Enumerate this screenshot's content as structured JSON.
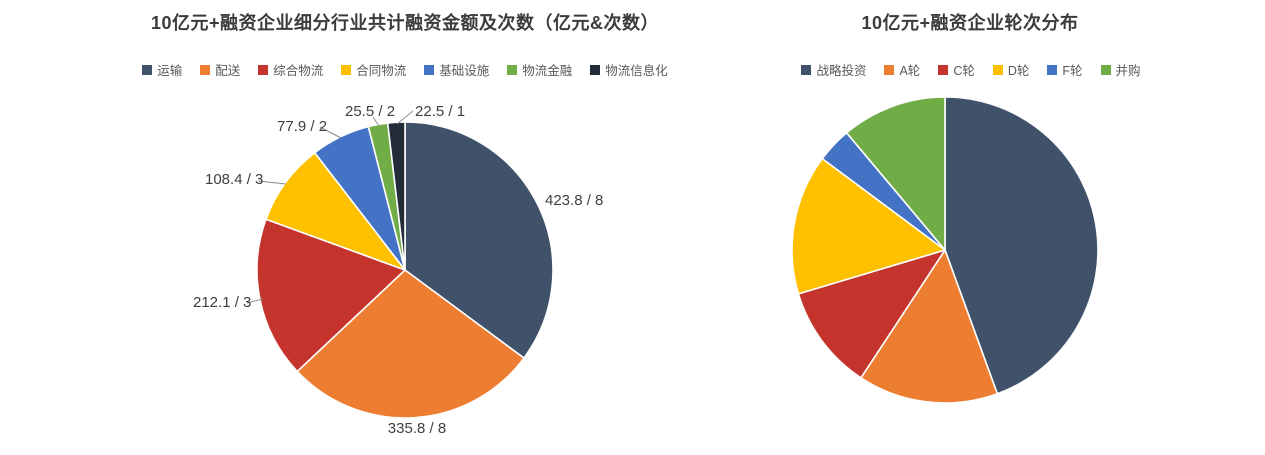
{
  "chart_data": [
    {
      "type": "pie",
      "title": "10亿元+融资企业细分行业共计融资金额及次数（亿元&次数）",
      "legend_position": "top",
      "data_label_format": "amount / count",
      "slices": [
        {
          "label": "运输",
          "color": "#3F5269",
          "amount": 423.8,
          "count": 8,
          "data_label": "423.8 / 8"
        },
        {
          "label": "配送",
          "color": "#ED7D31",
          "amount": 335.8,
          "count": 8,
          "data_label": "335.8 / 8"
        },
        {
          "label": "综合物流",
          "color": "#C5332D",
          "amount": 212.1,
          "count": 3,
          "data_label": "212.1 / 3"
        },
        {
          "label": "合同物流",
          "color": "#FFC000",
          "amount": 108.4,
          "count": 3,
          "data_label": "108.4 / 3"
        },
        {
          "label": "基础设施",
          "color": "#4472C4",
          "amount": 77.9,
          "count": 2,
          "data_label": "77.9 / 2"
        },
        {
          "label": "物流金融",
          "color": "#70AD47",
          "amount": 25.5,
          "count": 2,
          "data_label": "25.5 / 2"
        },
        {
          "label": "物流信息化",
          "color": "#232D3A",
          "amount": 22.5,
          "count": 1,
          "data_label": "22.5 / 1"
        }
      ]
    },
    {
      "type": "pie",
      "title": "10亿元+融资企业轮次分布",
      "legend_position": "top",
      "slices": [
        {
          "label": "战略投资",
          "color": "#3F5269",
          "value": 12
        },
        {
          "label": "A轮",
          "color": "#ED7D31",
          "value": 4
        },
        {
          "label": "C轮",
          "color": "#C5332D",
          "value": 3
        },
        {
          "label": "D轮",
          "color": "#FFC000",
          "value": 4
        },
        {
          "label": "F轮",
          "color": "#4472C4",
          "value": 1
        },
        {
          "label": "并购",
          "color": "#70AD47",
          "value": 3
        }
      ]
    }
  ]
}
